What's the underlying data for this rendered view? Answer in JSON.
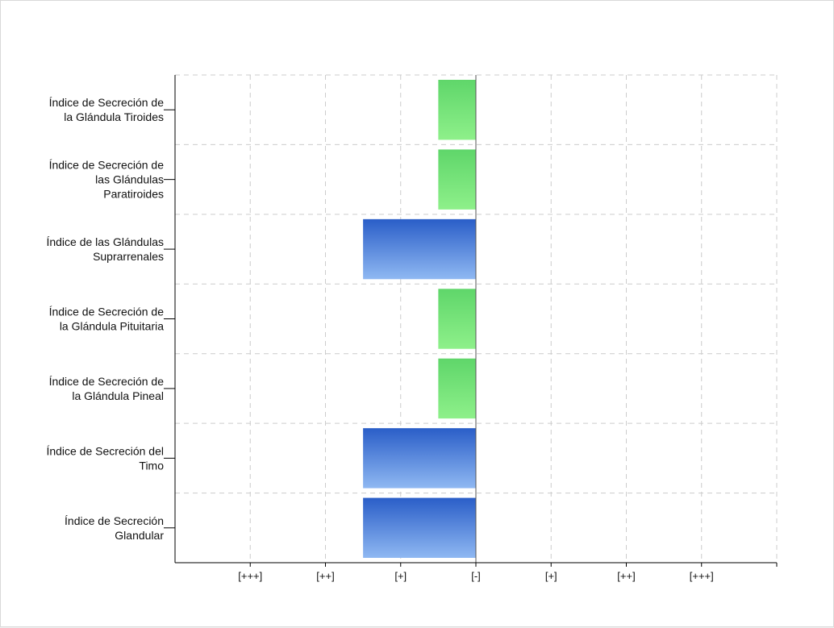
{
  "chart_data": {
    "type": "bar",
    "orientation": "horizontal",
    "categories": [
      [
        "Índice de Secreción de",
        "la Glándula Tiroides"
      ],
      [
        "Índice de Secreción de",
        "las Glándulas",
        "Paratiroides"
      ],
      [
        "Índice de las Glándulas",
        "Suprarrenales"
      ],
      [
        "Índice de Secreción de",
        "la Glándula Pituitaria"
      ],
      [
        "Índice de Secreción de",
        "la Glándula Pineal"
      ],
      [
        "Índice de Secreción del",
        "Timo"
      ],
      [
        "Índice de Secreción",
        "Glandular"
      ]
    ],
    "values": [
      -0.5,
      -0.5,
      -1.5,
      -0.5,
      -0.5,
      -1.5,
      -1.5
    ],
    "bar_colors": [
      "green",
      "green",
      "blue",
      "green",
      "green",
      "blue",
      "blue"
    ],
    "x_ticks": [
      {
        "value": -3,
        "label": "[+++]"
      },
      {
        "value": -2,
        "label": "[++]"
      },
      {
        "value": -1,
        "label": "[+]"
      },
      {
        "value": 0,
        "label": "[-]"
      },
      {
        "value": 1,
        "label": "[+]"
      },
      {
        "value": 2,
        "label": "[++]"
      },
      {
        "value": 3,
        "label": "[+++]"
      }
    ],
    "xlim": [
      -4,
      4
    ],
    "grid": true,
    "title": "",
    "xlabel": "",
    "ylabel": "",
    "colors": {
      "green_top": "#5fd66a",
      "green_bottom": "#8ef08a",
      "blue_top": "#2a5ec8",
      "blue_bottom": "#8fb8f2",
      "grid": "#cccccc",
      "axis": "#000000"
    }
  }
}
